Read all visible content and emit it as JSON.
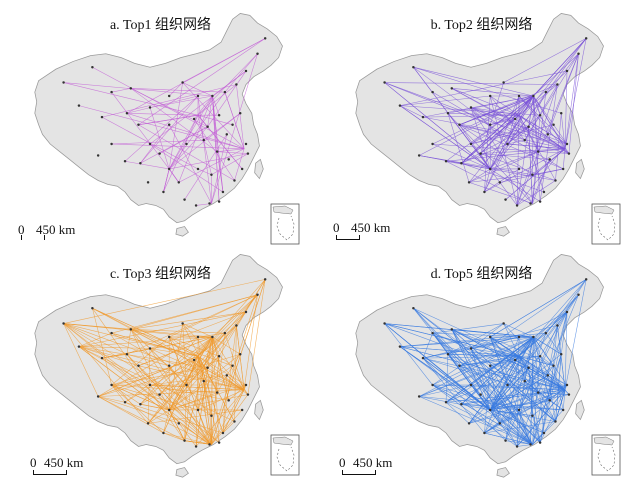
{
  "panels": [
    {
      "title": "a. Top1 组织网络",
      "color": "#c25bd6",
      "lines": 90,
      "scale_zero": "0",
      "scale_dist": "450 km"
    },
    {
      "title": "b. Top2 组织网络",
      "color": "#7a52d8",
      "lines": 180,
      "scale_zero": "0",
      "scale_dist": "450 km"
    },
    {
      "title": "c. Top3 组织网络",
      "color": "#f09a2c",
      "lines": 230,
      "scale_zero": "0",
      "scale_dist": "450 km"
    },
    {
      "title": "d. Top5 组织网络",
      "color": "#3a7be0",
      "lines": 320,
      "scale_zero": "0",
      "scale_dist": "450 km"
    }
  ],
  "land_color": "#e4e4e4",
  "border_color": "#9a9a9a",
  "node_color": "#333333"
}
